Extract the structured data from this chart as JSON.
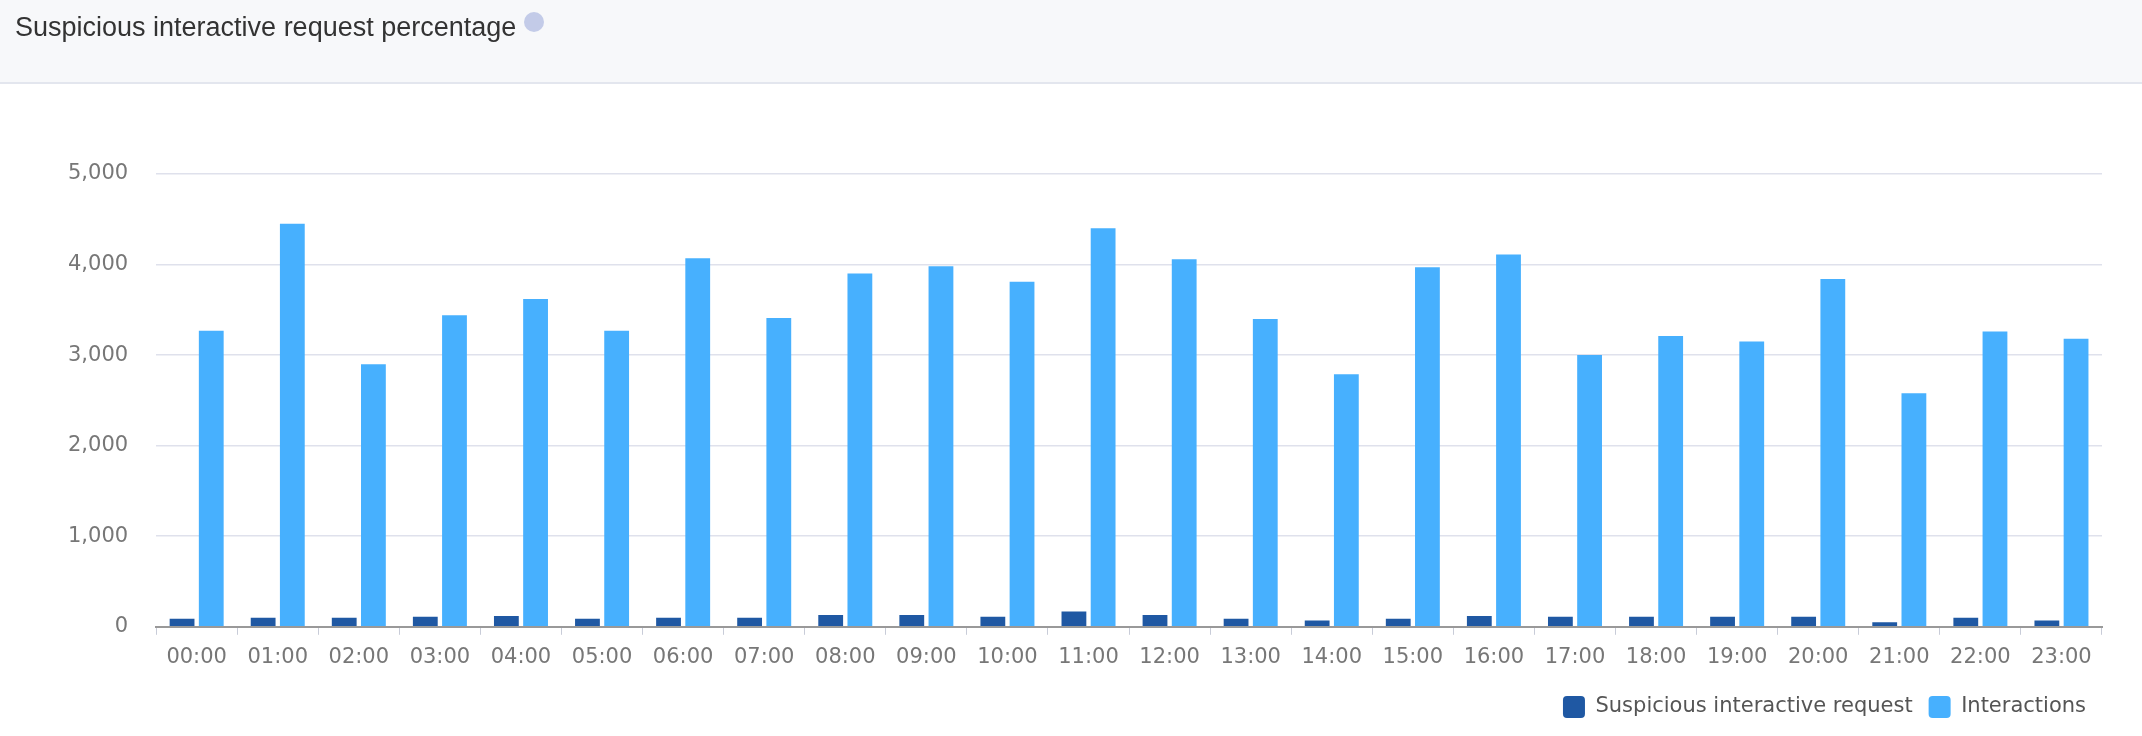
{
  "chart_data": {
    "type": "bar",
    "title": "Suspicious interactive request percentage",
    "categories": [
      "00:00",
      "01:00",
      "02:00",
      "03:00",
      "04:00",
      "05:00",
      "06:00",
      "07:00",
      "08:00",
      "09:00",
      "10:00",
      "11:00",
      "12:00",
      "13:00",
      "14:00",
      "15:00",
      "16:00",
      "17:00",
      "18:00",
      "19:00",
      "20:00",
      "21:00",
      "22:00",
      "23:00"
    ],
    "series": [
      {
        "name": "Suspicious interactive request",
        "color": "#1f58a3",
        "values": [
          90,
          100,
          100,
          110,
          120,
          90,
          100,
          100,
          130,
          130,
          110,
          170,
          130,
          90,
          70,
          90,
          120,
          110,
          110,
          110,
          110,
          50,
          100,
          70
        ]
      },
      {
        "name": "Interactions",
        "color": "#47b0fe",
        "values": [
          3270,
          4450,
          2900,
          3440,
          3620,
          3270,
          4070,
          3410,
          3900,
          3980,
          3810,
          4400,
          4060,
          3400,
          2790,
          3970,
          4110,
          3000,
          3210,
          3150,
          3840,
          2580,
          3260,
          3180
        ]
      }
    ],
    "ylim": [
      0,
      5000
    ],
    "yticks": [
      {
        "value": 0,
        "label": "0"
      },
      {
        "value": 1000,
        "label": "1,000"
      },
      {
        "value": 2000,
        "label": "2,000"
      },
      {
        "value": 3000,
        "label": "3,000"
      },
      {
        "value": 4000,
        "label": "4,000"
      },
      {
        "value": 5000,
        "label": "5,000"
      }
    ],
    "grid": "y",
    "legend": "bottom right"
  }
}
